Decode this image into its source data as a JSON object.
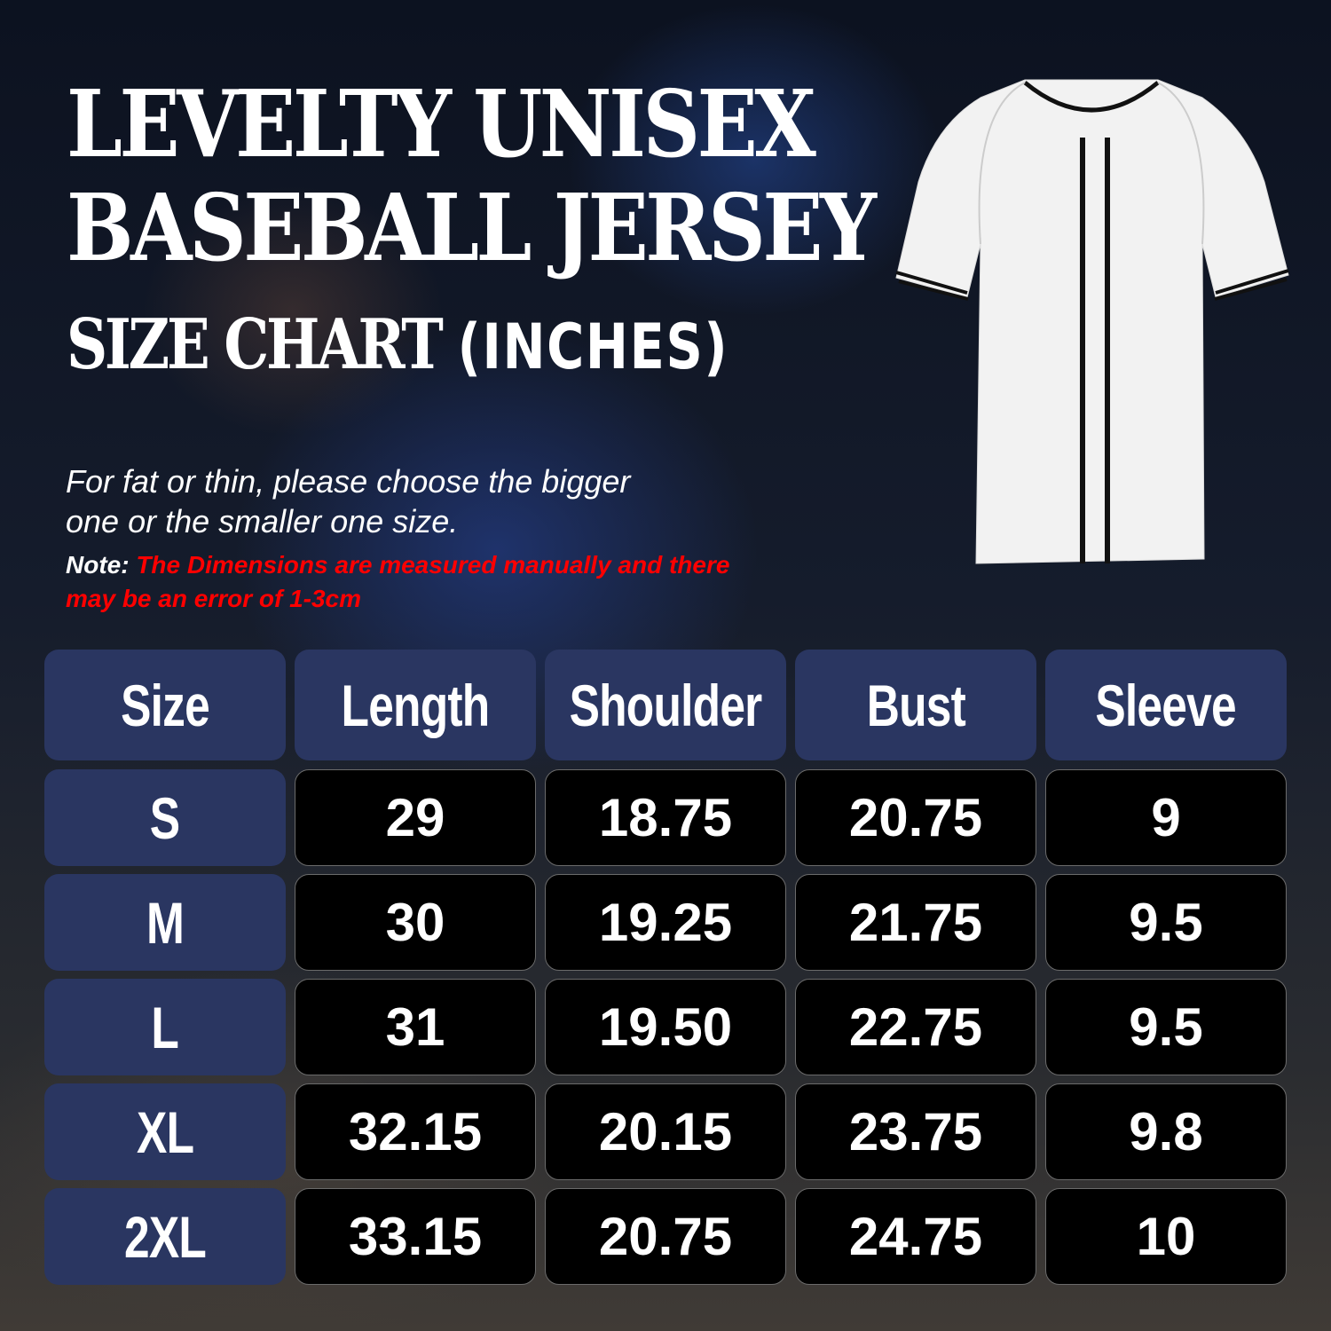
{
  "title": {
    "line1": "LEVELTY UNISEX",
    "line2": "BASEBALL JERSEY",
    "line3": "SIZE CHART",
    "unit": "(INCHES)"
  },
  "info": {
    "line1": "For fat or thin, please choose the bigger",
    "line2": "one or the smaller one size.",
    "note_label": "Note:",
    "note_text": "The Dimensions are measured manually and there",
    "note_text2": "may be an error of 1-3cm"
  },
  "colors": {
    "header": "#2a3661",
    "cell": "#000000",
    "note": "#ff0000"
  },
  "table": {
    "headers": [
      "Size",
      "Length",
      "Shoulder",
      "Bust",
      "Sleeve"
    ],
    "rows": [
      [
        "S",
        "29",
        "18.75",
        "20.75",
        "9"
      ],
      [
        "M",
        "30",
        "19.25",
        "21.75",
        "9.5"
      ],
      [
        "L",
        "31",
        "19.50",
        "22.75",
        "9.5"
      ],
      [
        "XL",
        "32.15",
        "20.15",
        "23.75",
        "9.8"
      ],
      [
        "2XL",
        "33.15",
        "20.75",
        "24.75",
        "10"
      ]
    ]
  }
}
